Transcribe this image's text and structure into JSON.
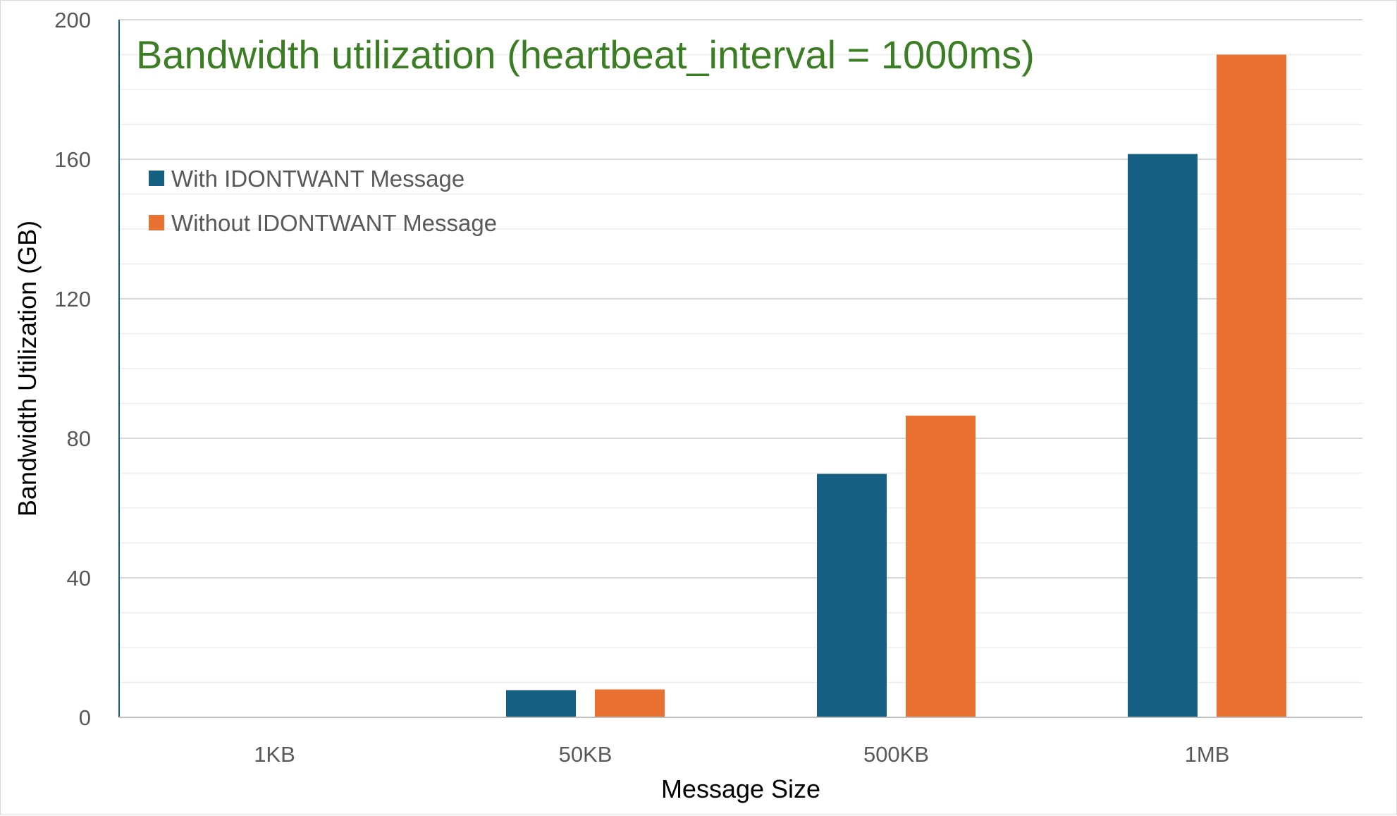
{
  "chart_data": {
    "type": "bar",
    "title": "Bandwidth utilization (heartbeat_interval = 1000ms)",
    "xlabel": "Message Size",
    "ylabel": "Bandwidth Utilization (GB)",
    "categories": [
      "1KB",
      "50KB",
      "500KB",
      "1MB"
    ],
    "series": [
      {
        "name": "With IDONTWANT Message",
        "color": "#156082",
        "values": [
          0.2,
          7.8,
          69.8,
          161.5
        ]
      },
      {
        "name": "Without IDONTWANT Message",
        "color": "#E97132",
        "values": [
          0.2,
          8.0,
          86.5,
          190.0
        ]
      }
    ],
    "ylim": [
      0,
      200
    ],
    "yticks": [
      0,
      40,
      80,
      120,
      160,
      200
    ],
    "minor_grid_step": 10,
    "grid": true,
    "legend_position": "top-left",
    "title_color": "#3A7D22"
  }
}
